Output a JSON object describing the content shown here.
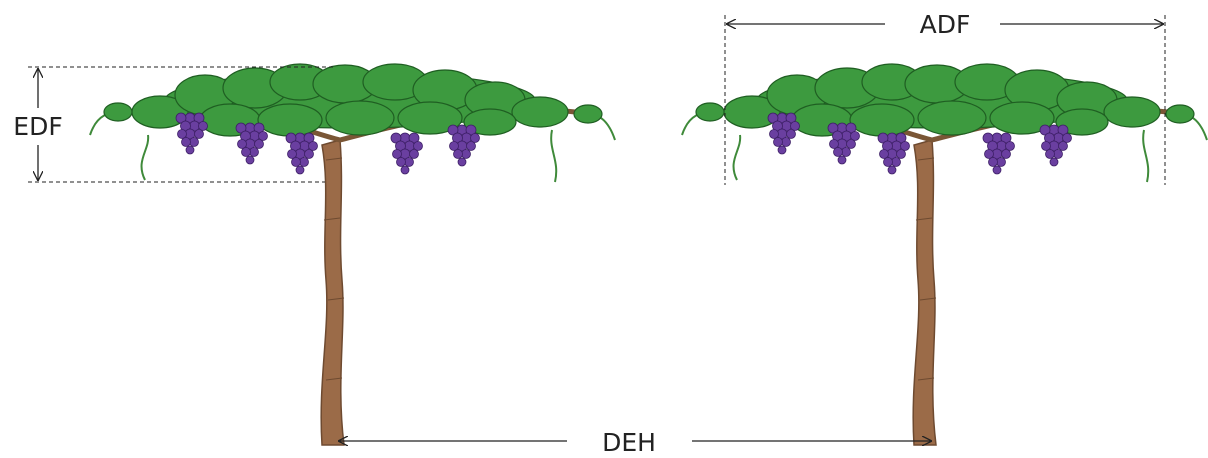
{
  "labels": {
    "canopy_height": "EDF",
    "canopy_width": "ADF",
    "vine_spacing": "DEH"
  }
}
